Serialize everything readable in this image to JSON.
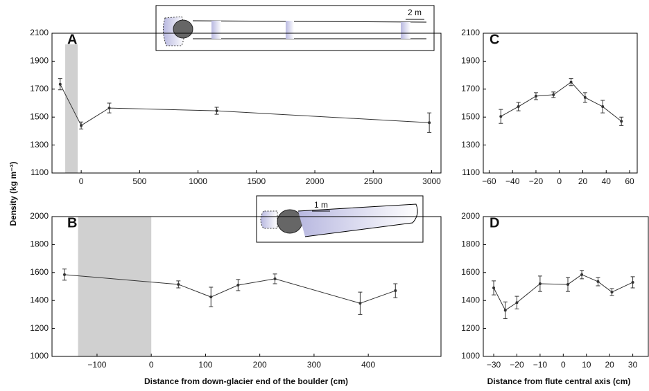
{
  "chart_data": [
    {
      "type": "line",
      "label": "A",
      "color": "#333333",
      "y_label": "Density (kg m⁻³)",
      "inset_scale": "2 m",
      "x": [
        -180,
        0,
        240,
        1160,
        2980
      ],
      "values": [
        1735,
        1440,
        1565,
        1545,
        1460
      ],
      "errors": [
        40,
        25,
        35,
        25,
        70
      ],
      "xlim": [
        -250,
        3080
      ],
      "ylim": [
        1100,
        2100
      ],
      "xticks": [
        0,
        500,
        1000,
        1500,
        2000,
        2500,
        3000
      ],
      "yticks": [
        1100,
        1300,
        1500,
        1700,
        1900,
        2100
      ],
      "shade_x": [
        -137,
        -30
      ],
      "shade_top": 2020
    },
    {
      "type": "line",
      "label": "B",
      "color": "#333333",
      "x_label": "Distance from down-glacier end of the boulder (cm)",
      "inset_scale": "1 m",
      "x": [
        -160,
        50,
        110,
        160,
        228,
        385,
        450
      ],
      "values": [
        1585,
        1515,
        1425,
        1510,
        1555,
        1380,
        1470
      ],
      "errors": [
        40,
        25,
        70,
        40,
        35,
        80,
        50
      ],
      "xlim": [
        -183,
        534
      ],
      "ylim": [
        1000,
        2000
      ],
      "xticks": [
        {
          "value": -100,
          "label": "−100"
        },
        0,
        100,
        200,
        300,
        400
      ],
      "yticks": [
        1000,
        1200,
        1400,
        1600,
        1800,
        2000
      ],
      "shade_x": [
        -135,
        0
      ],
      "shade_top": 2000
    },
    {
      "type": "line",
      "label": "C",
      "color": "#333333",
      "x": [
        -50,
        -35,
        -20,
        -5,
        10,
        22,
        37,
        53
      ],
      "values": [
        1505,
        1575,
        1650,
        1660,
        1750,
        1640,
        1575,
        1470
      ],
      "errors": [
        50,
        30,
        25,
        20,
        25,
        35,
        45,
        30
      ],
      "xlim": [
        -65,
        66.5
      ],
      "ylim": [
        1100,
        2100
      ],
      "xticks": [
        {
          "value": -60,
          "label": "−60"
        },
        {
          "value": -40,
          "label": "−40"
        },
        {
          "value": -20,
          "label": "−20"
        },
        0,
        20,
        40,
        60
      ],
      "yticks": [
        1100,
        1300,
        1500,
        1700,
        1900,
        2100
      ]
    },
    {
      "type": "line",
      "label": "D",
      "color": "#333333",
      "x_label": "Distance from flute central axis (cm)",
      "x": [
        -30,
        -25,
        -20,
        -10,
        2,
        8,
        15,
        21,
        30
      ],
      "values": [
        1490,
        1330,
        1385,
        1520,
        1515,
        1585,
        1535,
        1460,
        1530
      ],
      "errors": [
        50,
        60,
        45,
        55,
        50,
        30,
        30,
        25,
        40
      ],
      "xlim": [
        -34.5,
        36.7
      ],
      "ylim": [
        1000,
        2000
      ],
      "xticks": [
        {
          "value": -30,
          "label": "−30"
        },
        {
          "value": -20,
          "label": "−20"
        },
        {
          "value": -10,
          "label": "−10"
        },
        0,
        10,
        20,
        30
      ],
      "yticks": [
        1000,
        1200,
        1400,
        1600,
        1800,
        2000
      ]
    }
  ]
}
